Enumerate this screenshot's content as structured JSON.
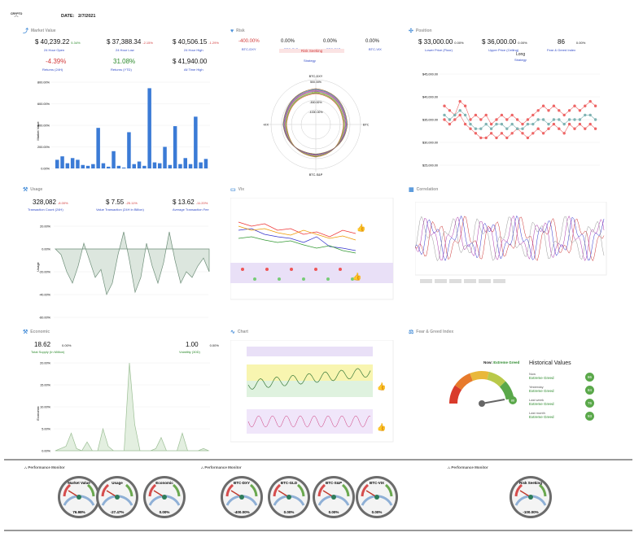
{
  "header": {
    "logo_text": "CRYPTO",
    "date_label": "DATE:",
    "date_value": "2/7/2021"
  },
  "market": {
    "title": "Market Value",
    "open": {
      "value": "$ 40,239.22",
      "pct": "5.34%",
      "label": "24 Hour Open"
    },
    "low": {
      "value": "$ 37,388.34",
      "pct": "-2.15%",
      "label": "24 Hour Low"
    },
    "high": {
      "value": "$ 40,506.15",
      "pct": "-1.29%",
      "label": "24 Hour High"
    },
    "ret24": {
      "value": "-4.39%",
      "label": "Returns (24H)"
    },
    "retytd": {
      "value": "31.08%",
      "label": "Returns (YTD)"
    },
    "ath": {
      "value": "$ 41,940.00",
      "label": "All Time High"
    },
    "ylabel": "Market Value",
    "yticks": [
      "800.00%",
      "600.00%",
      "400.00%",
      "200.00%",
      "0.00%"
    ]
  },
  "risk": {
    "title": "Risk",
    "cols": [
      {
        "value": "-400.00%",
        "label": "BTC-DXY"
      },
      {
        "value": "0.00%",
        "label": "BTC-GLD"
      },
      {
        "value": "0.00%",
        "label": "BTC-S&P"
      },
      {
        "value": "0.00%",
        "label": "BTC-VIX"
      }
    ],
    "badge": "Risk Seeking",
    "badge_label": "Strategy",
    "axes": [
      "BTC-DXY",
      "BTC-GLD",
      "BTC-S&P",
      "BTC-VIX"
    ],
    "rings": [
      "500.00%",
      "0.00%",
      "-500.00%",
      "-1000.00%"
    ]
  },
  "position": {
    "title": "Position",
    "lower": {
      "value": "$ 33,000.00",
      "pct": "0.00%",
      "label": "Lower Price (Floor)"
    },
    "upper": {
      "value": "$ 36,000.00",
      "pct": "0.00%",
      "label": "Upper Price (Ceiling)"
    },
    "fg": {
      "value": "86",
      "pct": "0.00%",
      "label": "Fear & Greed Index"
    },
    "strategy": "Long",
    "strategy_label": "Strategy",
    "yticks": [
      "$45,000.00",
      "$40,000.00",
      "$35,000.00",
      "$30,000.00",
      "$25,000.00"
    ]
  },
  "usage": {
    "title": "Usage",
    "count": {
      "value": "328,082",
      "pct": "-8.00%",
      "label": "Transaction Count (24H)"
    },
    "valtx": {
      "value": "$ 7.55",
      "pct": "-25.11%",
      "label": "Value Transaction (24H in Billion)"
    },
    "fee": {
      "value": "$ 13.62",
      "pct": "-11.20%",
      "label": "Average Transaction Fee"
    },
    "ylabel": "Usage",
    "yticks": [
      "20.00%",
      "0.00%",
      "-20.00%",
      "-40.00%",
      "-60.00%"
    ]
  },
  "vix": {
    "title": "Vix"
  },
  "correlation": {
    "title": "Correlation"
  },
  "economic": {
    "title": "Economic",
    "supply": {
      "value": "18.62",
      "pct": "0.00%",
      "label": "Total Supply (In Million)"
    },
    "vol": {
      "value": "1.00",
      "pct": "0.00%",
      "label": "Volatility (30D)"
    },
    "ylabel": "Economic",
    "yticks": [
      "20.00%",
      "15.00%",
      "10.00%",
      "5.00%",
      "0.00%"
    ]
  },
  "chart": {
    "title": "Chart"
  },
  "feargreed": {
    "title": "Fear & Greed Index",
    "now_label": "Now:",
    "now_value": "Extreme Greed",
    "now_score": "86",
    "hist_title": "Historical Values",
    "history": [
      {
        "when": "Now",
        "label": "Extreme Greed",
        "score": "86"
      },
      {
        "when": "Yesterday",
        "label": "Extreme Greed",
        "score": "84"
      },
      {
        "when": "Last week",
        "label": "Extreme Greed",
        "score": "76"
      },
      {
        "when": "Last month",
        "label": "Extreme Greed",
        "score": "93"
      }
    ]
  },
  "monitors": [
    {
      "title": "Performance Monitor",
      "gauges": [
        {
          "label": "Market Value",
          "value": "76.98%"
        },
        {
          "label": "Usage",
          "value": "-27.47%"
        },
        {
          "label": "Economic",
          "value": "0.00%"
        }
      ]
    },
    {
      "title": "Performance Monitor",
      "gauges": [
        {
          "label": "BTC-DXY",
          "value": "-400.00%"
        },
        {
          "label": "BTC-GLD",
          "value": "0.00%"
        },
        {
          "label": "BTC-S&P",
          "value": "0.00%"
        },
        {
          "label": "BTC-VIX",
          "value": "0.00%"
        }
      ]
    },
    {
      "title": "Performance Monitor",
      "gauges": [
        {
          "label": "Risk Seeking",
          "value": "-100.00%"
        }
      ]
    }
  ],
  "colors": {
    "accent": "#4a90d9",
    "bar": "#3b7bd6",
    "red": "#d23b3b",
    "green": "#2c8a2c",
    "area": "#dce6de"
  }
}
